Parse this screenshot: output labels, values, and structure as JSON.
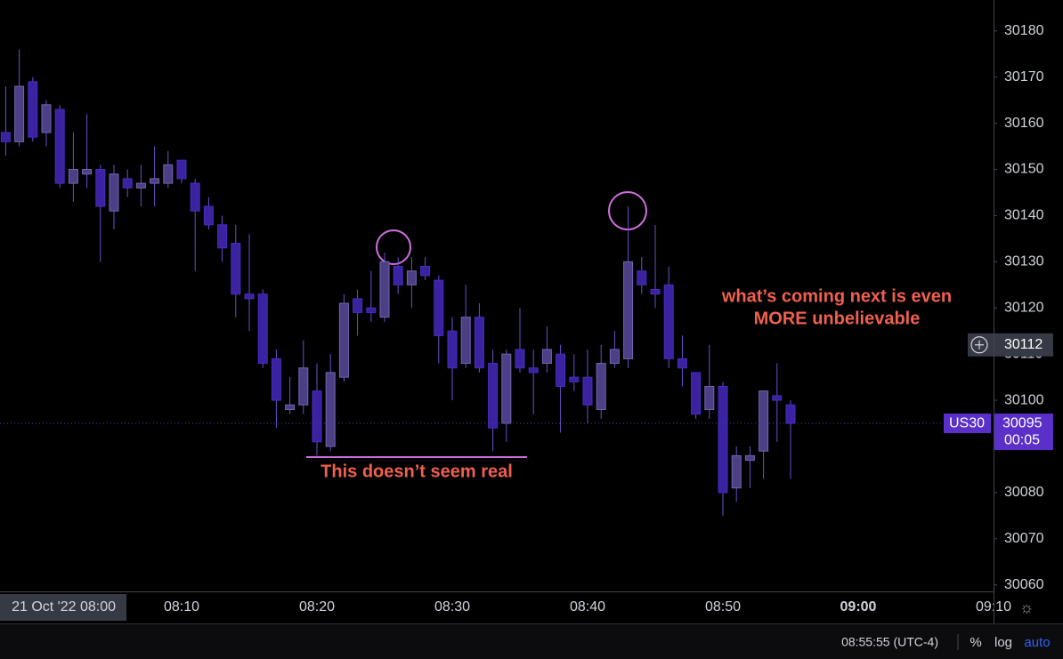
{
  "chart_data": {
    "type": "candlestick",
    "symbol": "US30",
    "last_price": 30095,
    "countdown": "00:05",
    "crosshair_price": 30112,
    "up_color": "#4d3f86",
    "down_color": "#3b22a0",
    "x": [
      "07:57",
      "07:58",
      "07:59",
      "08:00",
      "08:01",
      "08:02",
      "08:03",
      "08:04",
      "08:05",
      "08:06",
      "08:07",
      "08:08",
      "08:09",
      "08:10",
      "08:11",
      "08:12",
      "08:13",
      "08:14",
      "08:15",
      "08:16",
      "08:17",
      "08:18",
      "08:19",
      "08:20",
      "08:21",
      "08:22",
      "08:23",
      "08:24",
      "08:25",
      "08:26",
      "08:27",
      "08:28",
      "08:29",
      "08:30",
      "08:31",
      "08:32",
      "08:33",
      "08:34",
      "08:35",
      "08:36",
      "08:37",
      "08:38",
      "08:39",
      "08:40",
      "08:41",
      "08:42",
      "08:43",
      "08:44",
      "08:45",
      "08:46",
      "08:47",
      "08:48",
      "08:49",
      "08:50",
      "08:51",
      "08:52",
      "08:53",
      "08:54",
      "08:55"
    ],
    "open": [
      30158,
      30156,
      30169,
      30158,
      30163,
      30147,
      30149,
      30150,
      30141,
      30148,
      30146,
      30147,
      30147,
      30152,
      30147,
      30142,
      30138,
      30134,
      30123,
      30123,
      30109,
      30098,
      30099,
      30102,
      30090,
      30105,
      30122,
      30120,
      30118,
      30129,
      30125,
      30129,
      30126,
      30115,
      30108,
      30118,
      30108,
      30095,
      30111,
      30107,
      30108,
      30110,
      30105,
      30105,
      30098,
      30108,
      30109,
      30128,
      30124,
      30125,
      30109,
      30106,
      30098,
      30103,
      30081,
      30087,
      30089,
      30101,
      30099
    ],
    "high": [
      30168,
      30176,
      30170,
      30165,
      30164,
      30158,
      30162,
      30151,
      30151,
      30150,
      30151,
      30155,
      30154,
      30152,
      30148,
      30144,
      30140,
      30138,
      30136,
      30124,
      30111,
      30105,
      30113,
      30108,
      30110,
      30123,
      30124,
      30128,
      30132,
      30131,
      30131,
      30131,
      30127,
      30118,
      30125,
      30121,
      30111,
      30111,
      30120,
      30111,
      30116,
      30112,
      30110,
      30111,
      30112,
      30115,
      30142,
      30131,
      30138,
      30129,
      30114,
      30106,
      30112,
      30104,
      30090,
      30090,
      30102,
      30108,
      30100
    ],
    "low": [
      30153,
      30155,
      30156,
      30155,
      30146,
      30143,
      30146,
      30130,
      30137,
      30144,
      30142,
      30142,
      30146,
      30147,
      30128,
      30137,
      30130,
      30118,
      30115,
      30107,
      30094,
      30097,
      30097,
      30088,
      30089,
      30104,
      30114,
      30117,
      30117,
      30123,
      30120,
      30126,
      30108,
      30100,
      30107,
      30106,
      30089,
      30091,
      30106,
      30097,
      30106,
      30093,
      30102,
      30095,
      30096,
      30107,
      30107,
      30123,
      30120,
      30107,
      30103,
      30096,
      30096,
      30075,
      30078,
      30081,
      30083,
      30091,
      30083
    ],
    "close": [
      30156,
      30168,
      30157,
      30164,
      30147,
      30150,
      30150,
      30142,
      30149,
      30146,
      30147,
      30148,
      30151,
      30148,
      30141,
      30138,
      30133,
      30123,
      30122,
      30108,
      30100,
      30099,
      30107,
      30091,
      30106,
      30121,
      30119,
      30119,
      30130,
      30125,
      30128,
      30127,
      30114,
      30107,
      30118,
      30107,
      30094,
      30110,
      30107,
      30106,
      30111,
      30103,
      30104,
      30099,
      30108,
      30111,
      30130,
      30125,
      30123,
      30109,
      30107,
      30097,
      30103,
      30080,
      30088,
      30088,
      30102,
      30100,
      30095
    ],
    "ylim": [
      30058.6,
      30186.7
    ],
    "yticks": [
      30060,
      30070,
      30080,
      30090,
      30100,
      30110,
      30120,
      30130,
      30140,
      30150,
      30160,
      30170,
      30180
    ],
    "xlim": [
      "07:57",
      "09:10"
    ],
    "xticks": [
      {
        "value": "08:00",
        "label": "21 Oct '22   08:00"
      },
      "08:10",
      "08:20",
      "08:30",
      "08:40",
      "08:50",
      "09:00",
      "09:10"
    ],
    "annotations": [
      "This doesn’t seem real",
      "what’s coming next is even",
      "MORE unbelievable"
    ],
    "status": {
      "time": "08:55:55 (UTC-4)",
      "percent": "%",
      "log": "log",
      "auto": "auto"
    }
  }
}
